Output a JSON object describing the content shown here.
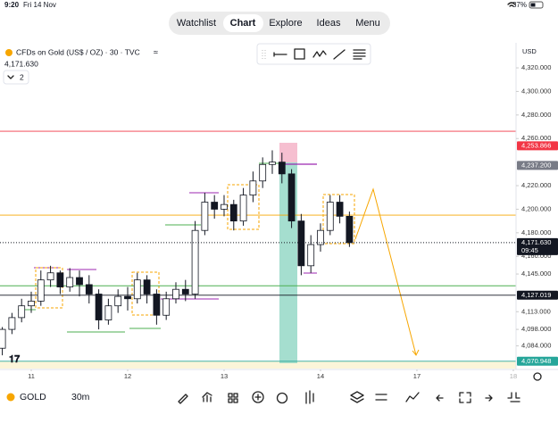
{
  "status_bar": {
    "time": "9:20",
    "date": "Fri 14 Nov",
    "battery": "37%"
  },
  "tabs": [
    "Watchlist",
    "Chart",
    "Explore",
    "Ideas",
    "Menu"
  ],
  "symbol": {
    "name": "CFDs on Gold (US$ / OZ) · 30 · TVC",
    "indicator_count": "2"
  },
  "currency": "USD",
  "bottom_bar": {
    "symbol": "GOLD",
    "interval": "30m"
  },
  "chart_data": {
    "type": "candlestick",
    "x": [
      -0.3,
      -0.2,
      -0.1,
      0,
      0.1,
      0.2,
      0.3,
      0.4,
      0.5,
      0.6,
      0.7,
      0.8,
      0.9,
      1,
      1.1,
      1.2,
      1.3,
      1.4,
      1.5,
      1.6,
      1.7,
      1.8,
      1.9,
      2,
      2.1,
      2.2,
      2.3,
      2.4,
      2.5,
      2.6,
      2.7,
      2.8,
      2.9,
      3,
      3.1,
      3.2,
      3.3
    ],
    "open": [
      4082,
      4098,
      4108,
      4118,
      4122,
      4140,
      4146,
      4134,
      4142,
      4136,
      4128,
      4106,
      4118,
      4126,
      4124,
      4140,
      4128,
      4110,
      4124,
      4132,
      4128,
      4182,
      4206,
      4200,
      4204,
      4190,
      4212,
      4224,
      4238,
      4240,
      4230,
      4190,
      4152,
      4170,
      4182,
      4206,
      4194
    ],
    "high": [
      4100,
      4112,
      4124,
      4130,
      4148,
      4152,
      4148,
      4150,
      4148,
      4144,
      4132,
      4124,
      4132,
      4134,
      4146,
      4144,
      4132,
      4130,
      4138,
      4140,
      4190,
      4214,
      4212,
      4212,
      4208,
      4218,
      4232,
      4244,
      4250,
      4248,
      4234,
      4196,
      4178,
      4188,
      4212,
      4212,
      4198
    ],
    "low": [
      4076,
      4094,
      4104,
      4112,
      4118,
      4134,
      4128,
      4130,
      4126,
      4120,
      4098,
      4102,
      4112,
      4114,
      4120,
      4120,
      4102,
      4106,
      4120,
      4122,
      4124,
      4178,
      4192,
      4194,
      4182,
      4186,
      4206,
      4218,
      4230,
      4222,
      4184,
      4144,
      4146,
      4164,
      4178,
      4188,
      4168
    ],
    "close": [
      4098,
      4108,
      4118,
      4122,
      4140,
      4146,
      4134,
      4142,
      4136,
      4128,
      4106,
      4118,
      4126,
      4124,
      4140,
      4128,
      4110,
      4124,
      4132,
      4128,
      4182,
      4206,
      4200,
      4204,
      4190,
      4212,
      4224,
      4238,
      4240,
      4230,
      4190,
      4152,
      4170,
      4182,
      4206,
      4194,
      4171.63
    ],
    "up_color": "#ffffff",
    "down_color": "#131722",
    "xlim": [
      -0.324,
      5.028
    ],
    "ylim": [
      4065.5,
      4347.3
    ],
    "xticks": [
      {
        "value": 0,
        "label": "11"
      },
      {
        "value": 1,
        "label": "12"
      },
      {
        "value": 2,
        "label": "13"
      },
      {
        "value": 3,
        "label": "14"
      },
      {
        "value": 4,
        "label": "17"
      },
      {
        "value": 5,
        "label": "18"
      }
    ],
    "yticks": [
      {
        "value": 4320,
        "label": "4,320.000"
      },
      {
        "value": 4300,
        "label": "4,300.000"
      },
      {
        "value": 4280,
        "label": "4,280.000"
      },
      {
        "value": 4260,
        "label": "4,260.000"
      },
      {
        "value": 4220,
        "label": "4,220.000"
      },
      {
        "value": 4200,
        "label": "4,200.000"
      },
      {
        "value": 4180,
        "label": "4,180.000"
      },
      {
        "value": 4160,
        "label": "4,160.000"
      },
      {
        "value": 4145,
        "label": "4,145.000"
      },
      {
        "value": 4113,
        "label": "4,113.000"
      },
      {
        "value": 4098,
        "label": "4,098.000"
      },
      {
        "value": 4084,
        "label": "4,084.000"
      }
    ],
    "levels": [
      {
        "value": 4266.2,
        "color": "#f23645"
      },
      {
        "value": 4195,
        "color": "#f7a600"
      },
      {
        "value": 4135,
        "color": "#4caf50"
      },
      {
        "value": 4127.019,
        "label": "4,127.019",
        "color": "#131722"
      },
      {
        "value": 4070.948,
        "label": "4,070.948",
        "color": "#26a69a"
      }
    ],
    "price_labels": [
      {
        "value": 4253.866,
        "label": "4,253.866",
        "color": "#f23645"
      },
      {
        "value": 4237.2,
        "label": "4,237.200",
        "color": "#787b86"
      }
    ],
    "last_price": {
      "value": 4171.63,
      "label": "4,171.630",
      "countdown": "09:45"
    }
  }
}
